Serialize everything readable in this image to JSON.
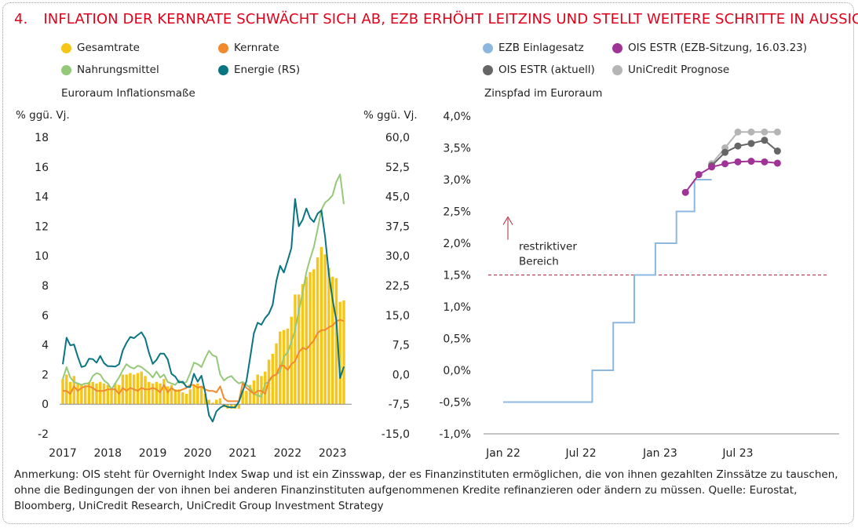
{
  "title": {
    "number": "4.",
    "text": "INFLATION DER KERNRATE SCHWÄCHT SICH AB, EZB ERHÖHT LEITZINS UND STELLT WEITERE SCHRITTE IN AUSSICHT"
  },
  "colors": {
    "gesamtrate": "#f5c518",
    "kernrate": "#f08a2c",
    "nahrungsmittel": "#95c97a",
    "energie": "#0a7582",
    "ezb": "#8cb8e0",
    "ois_ezb": "#a03496",
    "ois_aktuell": "#666666",
    "unicredit": "#b5b5b5",
    "threshold": "#b3243a",
    "title": "#e2001a"
  },
  "legend": {
    "left": [
      {
        "label": "Gesamtrate",
        "color": "#f5c518"
      },
      {
        "label": "Kernrate",
        "color": "#f08a2c"
      },
      {
        "label": "Nahrungsmittel",
        "color": "#95c97a"
      },
      {
        "label": "Energie (RS)",
        "color": "#0a7582"
      }
    ],
    "right": [
      {
        "label": "EZB Einlagesatz",
        "color": "#8cb8e0"
      },
      {
        "label": "OIS ESTR (EZB-Sitzung, 16.03.23)",
        "color": "#a03496"
      },
      {
        "label": "OIS ESTR (aktuell)",
        "color": "#666666"
      },
      {
        "label": "UniCredit Prognose",
        "color": "#b5b5b5"
      }
    ]
  },
  "chart_data": [
    {
      "type": "bar+line",
      "subtitle": "Euroraum Inflationsmaße",
      "ylabel_left": "% ggü. Vj.",
      "ylabel_right": "% ggü. Vj.",
      "ylim_left": [
        -2,
        18
      ],
      "ylim_right": [
        -15,
        60
      ],
      "yticks_left": [
        "-2",
        "0",
        "2",
        "4",
        "6",
        "8",
        "10",
        "12",
        "14",
        "16",
        "18"
      ],
      "yticks_right": [
        "-15,0",
        "-7,5",
        "0,0",
        "7,5",
        "15,0",
        "22,5",
        "30,0",
        "37,5",
        "45,0",
        "52,5",
        "60,0"
      ],
      "xticks": [
        "2017",
        "2018",
        "2019",
        "2020",
        "2021",
        "2022",
        "2023"
      ],
      "start": "2017-01",
      "series": [
        {
          "name": "Gesamtrate",
          "axis": "left",
          "kind": "bar",
          "values": [
            1.7,
            2.0,
            1.5,
            1.9,
            1.4,
            1.3,
            1.3,
            1.5,
            1.5,
            1.4,
            1.5,
            1.4,
            1.3,
            1.1,
            1.4,
            1.3,
            2.0,
            2.0,
            2.1,
            2.0,
            2.1,
            2.2,
            1.9,
            1.5,
            1.4,
            1.5,
            1.4,
            1.7,
            1.2,
            1.3,
            1.0,
            1.0,
            0.8,
            0.7,
            1.0,
            1.3,
            1.4,
            1.2,
            0.7,
            0.3,
            0.1,
            0.3,
            0.4,
            -0.2,
            -0.3,
            -0.3,
            -0.3,
            -0.3,
            0.9,
            0.9,
            1.3,
            1.6,
            2.0,
            1.9,
            2.2,
            3.0,
            3.4,
            4.1,
            4.9,
            5.0,
            5.1,
            5.9,
            7.4,
            7.4,
            8.1,
            8.6,
            8.9,
            9.1,
            9.9,
            10.6,
            10.1,
            9.2,
            8.6,
            8.5,
            6.9,
            7.0
          ]
        },
        {
          "name": "Kernrate",
          "axis": "left",
          "kind": "line",
          "values": [
            0.9,
            0.9,
            0.7,
            1.2,
            0.9,
            1.1,
            1.2,
            1.2,
            1.1,
            0.9,
            0.9,
            0.9,
            1.0,
            1.0,
            1.0,
            0.7,
            1.1,
            0.9,
            1.1,
            1.0,
            0.9,
            1.1,
            1.0,
            1.0,
            1.1,
            1.0,
            0.8,
            1.3,
            0.8,
            1.1,
            0.9,
            0.9,
            1.0,
            1.1,
            1.3,
            1.3,
            1.1,
            1.2,
            1.0,
            0.9,
            0.9,
            0.8,
            1.2,
            0.4,
            0.2,
            0.2,
            0.2,
            0.2,
            1.4,
            1.1,
            0.9,
            0.7,
            0.9,
            0.9,
            0.7,
            1.6,
            1.9,
            2.0,
            2.6,
            2.6,
            2.3,
            2.7,
            2.9,
            3.5,
            3.8,
            3.7,
            4.0,
            4.3,
            4.8,
            5.0,
            5.0,
            5.2,
            5.3,
            5.6,
            5.7,
            5.6
          ]
        },
        {
          "name": "Nahrungsmittel",
          "axis": "left",
          "kind": "line",
          "values": [
            1.7,
            2.5,
            1.8,
            1.5,
            1.4,
            1.3,
            1.4,
            1.4,
            1.9,
            2.1,
            2.0,
            1.6,
            1.4,
            1.0,
            1.4,
            1.8,
            2.3,
            2.7,
            2.5,
            2.4,
            2.6,
            2.5,
            2.3,
            2.1,
            1.8,
            2.2,
            1.8,
            2.0,
            1.5,
            1.4,
            1.3,
            1.6,
            1.4,
            1.5,
            2.1,
            2.8,
            2.7,
            2.5,
            3.1,
            3.6,
            3.3,
            3.2,
            2.0,
            1.6,
            1.8,
            1.9,
            1.6,
            1.4,
            1.5,
            1.3,
            1.1,
            0.7,
            0.6,
            0.5,
            1.4,
            1.5,
            1.9,
            2.0,
            2.2,
            3.2,
            3.5,
            4.2,
            5.0,
            6.3,
            7.5,
            8.9,
            9.8,
            10.6,
            11.8,
            13.1,
            13.6,
            13.8,
            14.1,
            15.0,
            15.5,
            13.5
          ]
        },
        {
          "name": "Energie (RS)",
          "axis": "right",
          "kind": "line",
          "values": [
            2.6,
            9.3,
            7.4,
            7.6,
            4.5,
            1.9,
            2.2,
            4.0,
            3.9,
            3.0,
            4.7,
            2.9,
            2.1,
            2.1,
            2.0,
            2.6,
            6.1,
            8.0,
            9.5,
            9.2,
            10.0,
            10.7,
            9.1,
            5.5,
            2.7,
            3.7,
            5.3,
            5.3,
            3.8,
            0.2,
            -0.5,
            -2.0,
            -1.8,
            -3.1,
            -3.2,
            0.2,
            -1.8,
            -0.3,
            -4.5,
            -10.3,
            -11.9,
            -9.3,
            -8.4,
            -7.8,
            -8.2,
            -8.3,
            -8.3,
            -6.9,
            -4.2,
            -1.7,
            4.3,
            10.4,
            13.1,
            12.6,
            14.3,
            15.4,
            17.6,
            23.7,
            27.5,
            25.8,
            28.8,
            32.0,
            44.4,
            37.5,
            39.1,
            42.0,
            39.6,
            38.6,
            40.7,
            41.5,
            34.9,
            25.5,
            18.9,
            13.7,
            -0.9,
            2.0
          ]
        }
      ]
    },
    {
      "type": "line",
      "subtitle": "Zinspfad im Euroraum",
      "ylim": [
        -1.0,
        4.0
      ],
      "yticks": [
        "-1,0%",
        "-0,5%",
        "0,0%",
        "0,5%",
        "1,0%",
        "1,5%",
        "2,0%",
        "2,5%",
        "3,0%",
        "3,5%",
        "4,0%"
      ],
      "xticks": [
        "Jan 22",
        "Jul 22",
        "Jan 23",
        "Jul 23"
      ],
      "threshold": {
        "value": 1.5,
        "label_line1": "restriktiver",
        "label_line2": "Bereich"
      },
      "series": [
        {
          "name": "EZB Einlagesatz",
          "kind": "step",
          "x": [
            "2022-01-01",
            "2022-07-27",
            "2022-09-14",
            "2022-11-02",
            "2022-12-21",
            "2023-02-08",
            "2023-03-22",
            "2023-05-01"
          ],
          "y": [
            -0.5,
            0.0,
            0.75,
            1.5,
            2.0,
            2.5,
            3.0,
            3.0
          ]
        },
        {
          "name": "OIS ESTR (EZB-Sitzung, 16.03.23)",
          "kind": "line-dots",
          "x": [
            "2023-03-01",
            "2023-04-01",
            "2023-05-01",
            "2023-06-01",
            "2023-07-01",
            "2023-08-01",
            "2023-09-01",
            "2023-10-01"
          ],
          "y": [
            2.8,
            3.08,
            3.2,
            3.25,
            3.28,
            3.29,
            3.28,
            3.26
          ]
        },
        {
          "name": "OIS ESTR (aktuell)",
          "kind": "line-dots",
          "x": [
            "2023-05-01",
            "2023-06-01",
            "2023-07-01",
            "2023-08-01",
            "2023-09-01",
            "2023-10-01"
          ],
          "y": [
            3.22,
            3.43,
            3.53,
            3.57,
            3.62,
            3.45
          ]
        },
        {
          "name": "UniCredit Prognose",
          "kind": "line-dots",
          "x": [
            "2023-05-01",
            "2023-06-01",
            "2023-07-01",
            "2023-08-01",
            "2023-09-01",
            "2023-10-01"
          ],
          "y": [
            3.25,
            3.5,
            3.75,
            3.75,
            3.75,
            3.75
          ]
        }
      ]
    }
  ],
  "note": "Anmerkung: OIS steht für Overnight Index Swap und ist ein Zinsswap, der es Finanzinstituten ermöglichen, die von ihnen gezahlten Zinssätze zu tauschen, ohne die Bedingungen der von ihnen bei anderen Finanzinstituten aufgenommenen Kredite refinanzieren oder ändern zu müssen. Quelle: Eurostat, Bloomberg, UniCredit Research, UniCredit Group Investment Strategy"
}
